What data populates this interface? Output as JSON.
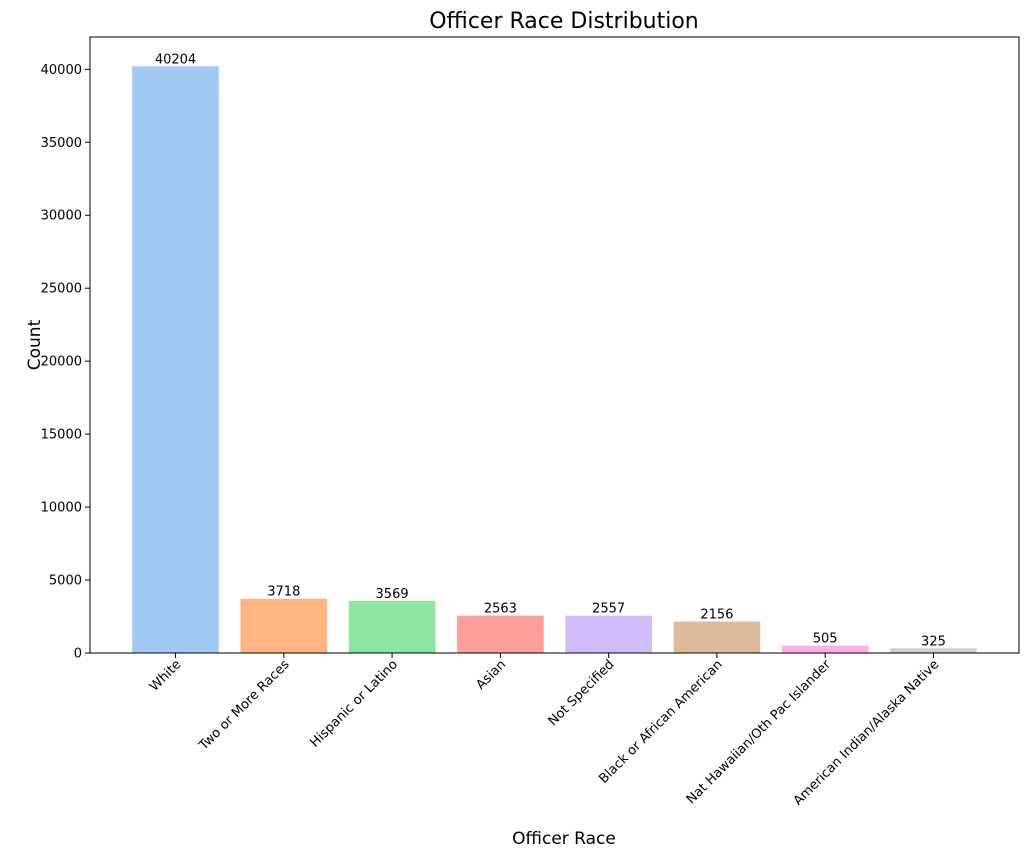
{
  "chart_data": {
    "type": "bar",
    "title": "Officer Race Distribution",
    "xlabel": "Officer Race",
    "ylabel": "Count",
    "categories": [
      "White",
      "Two or More Races",
      "Hispanic or Latino",
      "Asian",
      "Not Specified",
      "Black or African American",
      "Nat Hawaiian/Oth Pac Islander",
      "American Indian/Alaska Native"
    ],
    "values": [
      40204,
      3718,
      3569,
      2563,
      2557,
      2156,
      505,
      325
    ],
    "colors": [
      "#a1c9f4",
      "#ffb482",
      "#8de5a1",
      "#ff9f9b",
      "#d0bbff",
      "#debb9b",
      "#fab0e4",
      "#cfcfcf"
    ],
    "yticks": [
      0,
      5000,
      10000,
      15000,
      20000,
      25000,
      30000,
      35000,
      40000
    ],
    "ylim": [
      0,
      42214
    ],
    "grid": false,
    "xtick_rotation": 45
  }
}
